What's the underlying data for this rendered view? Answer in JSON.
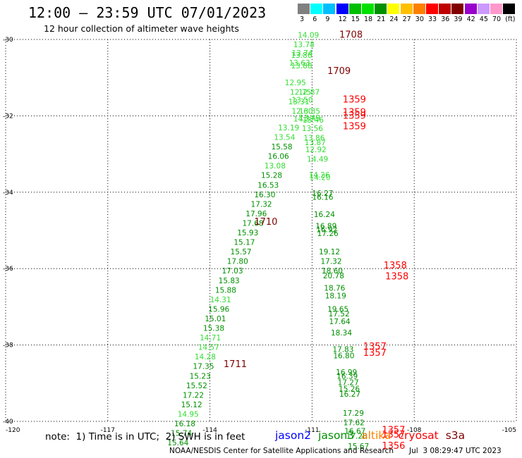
{
  "header": {
    "title": "12:00 – 23:59 UTC 07/01/2023",
    "subtitle": "12 hour collection of altimeter wave heights"
  },
  "colorbar": {
    "colors": [
      "#808080",
      "#00ffff",
      "#00bfff",
      "#0000ff",
      "#00bf00",
      "#00e000",
      "#009000",
      "#ffff00",
      "#ffc000",
      "#ff8000",
      "#ff0000",
      "#c00000",
      "#800000",
      "#9900cc",
      "#cc99ff",
      "#ff99cc",
      "#000000"
    ],
    "labels": [
      "3",
      "6",
      "9",
      "12",
      "15",
      "18",
      "21",
      "24",
      "27",
      "30",
      "33",
      "36",
      "39",
      "42",
      "45",
      "70",
      "(ft)"
    ]
  },
  "note": "note:  1) Time is in UTC;  2) SWH is in feet",
  "legend": [
    {
      "name": "jason2",
      "color": "#0000ff"
    },
    {
      "name": "jason3",
      "color": "#009000"
    },
    {
      "name": "altika",
      "color": "#ff8000"
    },
    {
      "name": "cryosat",
      "color": "#ff0000"
    },
    {
      "name": "s3a",
      "color": "#800000"
    }
  ],
  "footer": "NOAA/NESDIS Center for Satellite Applications and Research",
  "credit": "Jul  3 08:29:47 UTC 2023",
  "chart_data": {
    "type": "scatter",
    "xlim": [
      -120,
      -105
    ],
    "ylim": [
      -40,
      -30
    ],
    "xticks": [
      -120,
      -117,
      -114,
      -111,
      -108,
      -105
    ],
    "yticks": [
      -30,
      -32,
      -34,
      -36,
      -38,
      -40
    ],
    "xtick_labels": [
      "-120",
      "-117",
      "-114",
      "-111",
      "-108",
      "-105"
    ],
    "ytick_labels": [
      "-30",
      "-32",
      "-34",
      "-36",
      "-38",
      "-40"
    ],
    "grid": true,
    "series": [
      {
        "pass": "west",
        "points": [
          {
            "x": -111.8,
            "y": -31.2,
            "v": "12.95",
            "c": "#33dd33"
          },
          {
            "x": -111.65,
            "y": -31.45,
            "v": "12.75",
            "c": "#33dd33"
          },
          {
            "x": -111.4,
            "y": -31.45,
            "v": "12.87",
            "c": "#33dd33"
          },
          {
            "x": -111.7,
            "y": -31.7,
            "v": "13.31",
            "c": "#33dd33"
          },
          {
            "x": -111.6,
            "y": -31.95,
            "v": "12.60",
            "c": "#33dd33"
          },
          {
            "x": -111.55,
            "y": -32.15,
            "v": "14.37",
            "c": "#33dd33"
          },
          {
            "x": -112.0,
            "y": -32.38,
            "v": "13.19",
            "c": "#33dd33"
          },
          {
            "x": -112.12,
            "y": -32.63,
            "v": "13.54",
            "c": "#33dd33"
          },
          {
            "x": -112.2,
            "y": -32.88,
            "v": "15.58",
            "c": "#009000"
          },
          {
            "x": -112.3,
            "y": -33.13,
            "v": "16.06",
            "c": "#009000"
          },
          {
            "x": -112.4,
            "y": -33.38,
            "v": "13.08",
            "c": "#33dd33"
          },
          {
            "x": -112.5,
            "y": -33.63,
            "v": "15.28",
            "c": "#009000"
          },
          {
            "x": -112.6,
            "y": -33.88,
            "v": "16.53",
            "c": "#009000"
          },
          {
            "x": -112.7,
            "y": -34.13,
            "v": "16.30",
            "c": "#009000"
          },
          {
            "x": -112.8,
            "y": -34.38,
            "v": "17.32",
            "c": "#009000"
          },
          {
            "x": -112.95,
            "y": -34.63,
            "v": "17.96",
            "c": "#009000"
          },
          {
            "x": -113.05,
            "y": -34.88,
            "v": "17.68",
            "c": "#009000"
          },
          {
            "x": -113.2,
            "y": -35.13,
            "v": "15.93",
            "c": "#009000"
          },
          {
            "x": -113.3,
            "y": -35.38,
            "v": "15.17",
            "c": "#009000"
          },
          {
            "x": -113.4,
            "y": -35.63,
            "v": "15.57",
            "c": "#009000"
          },
          {
            "x": -113.5,
            "y": -35.88,
            "v": "17.80",
            "c": "#009000"
          },
          {
            "x": -113.65,
            "y": -36.13,
            "v": "17.03",
            "c": "#009000"
          },
          {
            "x": -113.75,
            "y": -36.38,
            "v": "15.83",
            "c": "#009000"
          },
          {
            "x": -113.85,
            "y": -36.63,
            "v": "15.88",
            "c": "#009000"
          },
          {
            "x": -114.0,
            "y": -36.88,
            "v": "14.31",
            "c": "#33dd33"
          },
          {
            "x": -114.05,
            "y": -37.13,
            "v": "15.96",
            "c": "#009000"
          },
          {
            "x": -114.15,
            "y": -37.38,
            "v": "15.01",
            "c": "#009000"
          },
          {
            "x": -114.2,
            "y": -37.63,
            "v": "15.38",
            "c": "#009000"
          },
          {
            "x": -114.3,
            "y": -37.88,
            "v": "14.71",
            "c": "#33dd33"
          },
          {
            "x": -114.35,
            "y": -38.13,
            "v": "14.57",
            "c": "#33dd33"
          },
          {
            "x": -114.45,
            "y": -38.38,
            "v": "14.28",
            "c": "#33dd33"
          },
          {
            "x": -114.5,
            "y": -38.63,
            "v": "17.35",
            "c": "#009000"
          },
          {
            "x": -114.6,
            "y": -38.88,
            "v": "15.23",
            "c": "#009000"
          },
          {
            "x": -114.7,
            "y": -39.13,
            "v": "15.52",
            "c": "#009000"
          },
          {
            "x": -114.8,
            "y": -39.38,
            "v": "17.22",
            "c": "#009000"
          },
          {
            "x": -114.85,
            "y": -39.63,
            "v": "15.12",
            "c": "#009000"
          },
          {
            "x": -114.95,
            "y": -39.88,
            "v": "14.95",
            "c": "#33dd33"
          },
          {
            "x": -115.05,
            "y": -40.13,
            "v": "16.18",
            "c": "#009000"
          },
          {
            "x": -115.15,
            "y": -40.38,
            "v": "15.74",
            "c": "#009000"
          },
          {
            "x": -115.25,
            "y": -40.63,
            "v": "15.64",
            "c": "#009000"
          }
        ]
      },
      {
        "pass": "central",
        "points": [
          {
            "x": -111.42,
            "y": -29.95,
            "v": "14.09",
            "c": "#33dd33"
          },
          {
            "x": -111.55,
            "y": -30.2,
            "v": "13.78",
            "c": "#33dd33"
          },
          {
            "x": -111.6,
            "y": -30.42,
            "v": "13.74",
            "c": "#33dd33"
          },
          {
            "x": -111.62,
            "y": -30.48,
            "v": "13.86",
            "c": "#33dd33"
          },
          {
            "x": -111.68,
            "y": -30.68,
            "v": "13.63",
            "c": "#33dd33"
          },
          {
            "x": -111.62,
            "y": -30.76,
            "v": "13.88",
            "c": "#33dd33"
          },
          {
            "x": -111.6,
            "y": -31.65,
            "v": "13.50",
            "c": "#33dd33"
          },
          {
            "x": -111.38,
            "y": -31.95,
            "v": "13.35",
            "c": "#33dd33"
          },
          {
            "x": -111.38,
            "y": -32.12,
            "v": "13.49",
            "c": "#33dd33"
          },
          {
            "x": -111.28,
            "y": -32.18,
            "v": "13.46",
            "c": "#33dd33"
          },
          {
            "x": -111.3,
            "y": -32.4,
            "v": "13.56",
            "c": "#33dd33"
          },
          {
            "x": -111.25,
            "y": -32.65,
            "v": "13.86",
            "c": "#33dd33"
          },
          {
            "x": -111.22,
            "y": -32.77,
            "v": "13.87",
            "c": "#33dd33"
          },
          {
            "x": -111.2,
            "y": -32.95,
            "v": "12.92",
            "c": "#33dd33"
          },
          {
            "x": -111.15,
            "y": -33.2,
            "v": "14.49",
            "c": "#33dd33"
          },
          {
            "x": -111.1,
            "y": -33.62,
            "v": "14.26",
            "c": "#33dd33"
          },
          {
            "x": -111.08,
            "y": -33.68,
            "v": "14.20",
            "c": "#33dd33"
          },
          {
            "x": -111.0,
            "y": -34.1,
            "v": "16.27",
            "c": "#009000"
          },
          {
            "x": -111.0,
            "y": -34.2,
            "v": "16.16",
            "c": "#009000"
          },
          {
            "x": -110.95,
            "y": -34.65,
            "v": "16.24",
            "c": "#009000"
          },
          {
            "x": -110.9,
            "y": -34.95,
            "v": "16.89",
            "c": "#009000"
          },
          {
            "x": -110.88,
            "y": -35.05,
            "v": "16.92",
            "c": "#009000"
          },
          {
            "x": -110.85,
            "y": -35.15,
            "v": "17.26",
            "c": "#009000"
          },
          {
            "x": -110.8,
            "y": -35.63,
            "v": "19.12",
            "c": "#009000"
          },
          {
            "x": -110.75,
            "y": -35.88,
            "v": "17.32",
            "c": "#009000"
          },
          {
            "x": -110.72,
            "y": -36.13,
            "v": "18.60",
            "c": "#009000"
          },
          {
            "x": -110.68,
            "y": -36.25,
            "v": "20.78",
            "c": "#009000"
          },
          {
            "x": -110.65,
            "y": -36.58,
            "v": "18.76",
            "c": "#009000"
          },
          {
            "x": -110.62,
            "y": -36.78,
            "v": "18.19",
            "c": "#009000"
          },
          {
            "x": -110.55,
            "y": -37.13,
            "v": "19.65",
            "c": "#009000"
          },
          {
            "x": -110.52,
            "y": -37.25,
            "v": "17.52",
            "c": "#009000"
          },
          {
            "x": -110.5,
            "y": -37.45,
            "v": "17.64",
            "c": "#009000"
          },
          {
            "x": -110.45,
            "y": -37.75,
            "v": "18.34",
            "c": "#009000"
          },
          {
            "x": -110.4,
            "y": -38.18,
            "v": "17.83",
            "c": "#009000"
          },
          {
            "x": -110.38,
            "y": -38.35,
            "v": "16.80",
            "c": "#009000"
          },
          {
            "x": -110.3,
            "y": -38.78,
            "v": "16.99",
            "c": "#009000"
          },
          {
            "x": -110.28,
            "y": -38.88,
            "v": "16.39",
            "c": "#009000"
          },
          {
            "x": -110.25,
            "y": -39.05,
            "v": "17.27",
            "c": "#009000"
          },
          {
            "x": -110.22,
            "y": -39.22,
            "v": "15.26",
            "c": "#009000"
          },
          {
            "x": -110.2,
            "y": -39.35,
            "v": "16.27",
            "c": "#009000"
          },
          {
            "x": -110.1,
            "y": -39.85,
            "v": "17.29",
            "c": "#009000"
          },
          {
            "x": -110.08,
            "y": -40.1,
            "v": "17.62",
            "c": "#009000"
          },
          {
            "x": -110.05,
            "y": -40.32,
            "v": "16.67",
            "c": "#009000"
          },
          {
            "x": -110.0,
            "y": -40.45,
            "v": "17.28",
            "c": "#009000"
          },
          {
            "x": -109.95,
            "y": -40.72,
            "v": "15.67",
            "c": "#009000"
          }
        ]
      }
    ],
    "pass_labels": [
      {
        "x": -110.2,
        "y": -29.95,
        "t": "1708",
        "c": "#800000"
      },
      {
        "x": -110.55,
        "y": -30.9,
        "t": "1709",
        "c": "#800000"
      },
      {
        "x": -110.1,
        "y": -31.65,
        "t": "1359",
        "c": "#ff0000"
      },
      {
        "x": -110.1,
        "y": -31.98,
        "t": "1359",
        "c": "#ff0000"
      },
      {
        "x": -110.1,
        "y": -32.08,
        "t": "1359",
        "c": "#ff0000"
      },
      {
        "x": -110.1,
        "y": -32.35,
        "t": "1359",
        "c": "#ff0000"
      },
      {
        "x": -112.7,
        "y": -34.85,
        "t": "1710",
        "c": "#800000"
      },
      {
        "x": -108.9,
        "y": -36.0,
        "t": "1358",
        "c": "#ff0000"
      },
      {
        "x": -108.85,
        "y": -36.28,
        "t": "1358",
        "c": "#ff0000"
      },
      {
        "x": -109.5,
        "y": -38.12,
        "t": "1357",
        "c": "#ff0000"
      },
      {
        "x": -109.5,
        "y": -38.28,
        "t": "1357",
        "c": "#ff0000"
      },
      {
        "x": -113.6,
        "y": -38.58,
        "t": "1711",
        "c": "#800000"
      },
      {
        "x": -108.95,
        "y": -40.3,
        "t": "1357",
        "c": "#ff0000"
      },
      {
        "x": -108.95,
        "y": -40.42,
        "t": "1357",
        "c": "#ff0000"
      },
      {
        "x": -108.95,
        "y": -40.72,
        "t": "1356",
        "c": "#ff0000"
      }
    ]
  }
}
